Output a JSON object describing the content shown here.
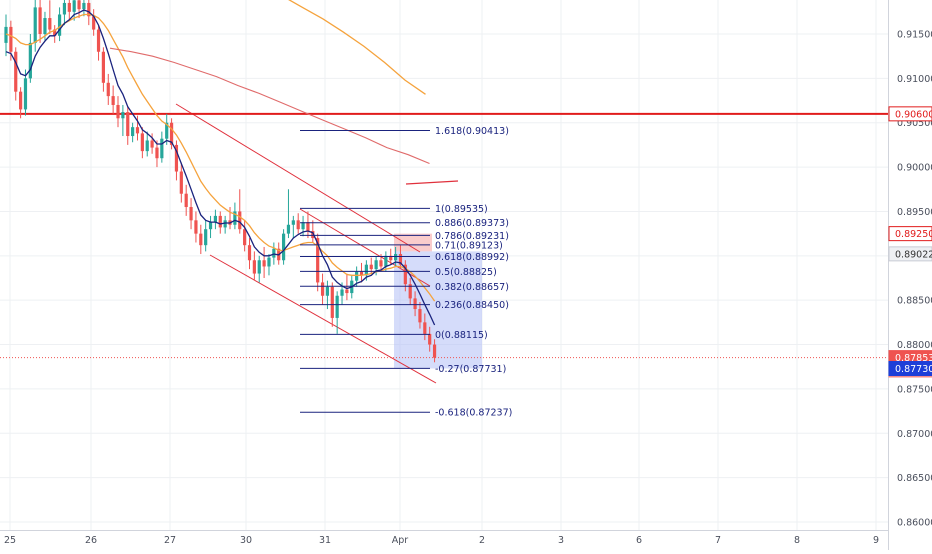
{
  "chart_data": {
    "type": "candlestick",
    "x_ticks": [
      "25",
      "26",
      "27",
      "30",
      "31",
      "Apr",
      "2",
      "3",
      "6",
      "7",
      "8",
      "9"
    ],
    "y_ticks": [
      "0.91500",
      "0.91000",
      "0.90500",
      "0.90000",
      "0.89500",
      "0.89000",
      "0.88500",
      "0.88000",
      "0.87500",
      "0.87000",
      "0.86500",
      "0.86000"
    ],
    "ylim": [
      0.8597,
      0.9196
    ],
    "price_tags": [
      {
        "text": "0.90600",
        "value": 0.906,
        "style": "red-outline"
      },
      {
        "text": "0.89250",
        "value": 0.8925,
        "style": "red-outline"
      },
      {
        "text": "0.89022",
        "value": 0.89022,
        "style": "grey"
      },
      {
        "text": "0.87853",
        "value": 0.87853,
        "style": "red-fill"
      },
      {
        "text": "01:31",
        "value": 0.87713,
        "style": "red-fill-light"
      },
      {
        "text": "0.87730",
        "value": 0.8773,
        "style": "blue-fill"
      }
    ],
    "fib_levels": [
      {
        "label": "1.618(0.90413)",
        "value": 0.90413
      },
      {
        "label": "1(0.89535)",
        "value": 0.89535
      },
      {
        "label": "0.886(0.89373)",
        "value": 0.89373
      },
      {
        "label": "0.786(0.89231)",
        "value": 0.89231
      },
      {
        "label": "0.71(0.89123)",
        "value": 0.89123
      },
      {
        "label": "0.618(0.88992)",
        "value": 0.88992
      },
      {
        "label": "0.5(0.88825)",
        "value": 0.88825
      },
      {
        "label": "0.382(0.88657)",
        "value": 0.88657
      },
      {
        "label": "0.236(0.88450)",
        "value": 0.8845
      },
      {
        "label": "0(0.88115)",
        "value": 0.88115
      },
      {
        "label": "-0.27(0.87731)",
        "value": 0.87731
      },
      {
        "label": "-0.618(0.87237)",
        "value": 0.87237
      }
    ],
    "horizontal_level": 0.906,
    "current_price": 0.87853,
    "candles": [
      {
        "o": 0.914,
        "h": 0.9172,
        "l": 0.9125,
        "c": 0.9158
      },
      {
        "o": 0.9158,
        "h": 0.9165,
        "l": 0.912,
        "c": 0.913
      },
      {
        "o": 0.913,
        "h": 0.9135,
        "l": 0.9075,
        "c": 0.9085
      },
      {
        "o": 0.9085,
        "h": 0.909,
        "l": 0.9055,
        "c": 0.9065
      },
      {
        "o": 0.9065,
        "h": 0.911,
        "l": 0.9058,
        "c": 0.91
      },
      {
        "o": 0.91,
        "h": 0.915,
        "l": 0.9095,
        "c": 0.914
      },
      {
        "o": 0.914,
        "h": 0.9196,
        "l": 0.913,
        "c": 0.918
      },
      {
        "o": 0.918,
        "h": 0.9196,
        "l": 0.914,
        "c": 0.915
      },
      {
        "o": 0.915,
        "h": 0.9175,
        "l": 0.9142,
        "c": 0.9168
      },
      {
        "o": 0.9168,
        "h": 0.9188,
        "l": 0.915,
        "c": 0.9155
      },
      {
        "o": 0.9155,
        "h": 0.916,
        "l": 0.914,
        "c": 0.9148
      },
      {
        "o": 0.9148,
        "h": 0.918,
        "l": 0.9142,
        "c": 0.9172
      },
      {
        "o": 0.9172,
        "h": 0.9196,
        "l": 0.916,
        "c": 0.9185
      },
      {
        "o": 0.9185,
        "h": 0.9196,
        "l": 0.9165,
        "c": 0.9175
      },
      {
        "o": 0.9175,
        "h": 0.9192,
        "l": 0.9165,
        "c": 0.9188
      },
      {
        "o": 0.9188,
        "h": 0.9196,
        "l": 0.9168,
        "c": 0.9178
      },
      {
        "o": 0.9178,
        "h": 0.9194,
        "l": 0.917,
        "c": 0.9185
      },
      {
        "o": 0.9185,
        "h": 0.9196,
        "l": 0.916,
        "c": 0.917
      },
      {
        "o": 0.917,
        "h": 0.9178,
        "l": 0.9148,
        "c": 0.9155
      },
      {
        "o": 0.9155,
        "h": 0.916,
        "l": 0.912,
        "c": 0.913
      },
      {
        "o": 0.913,
        "h": 0.9135,
        "l": 0.9085,
        "c": 0.9095
      },
      {
        "o": 0.9095,
        "h": 0.9105,
        "l": 0.907,
        "c": 0.908
      },
      {
        "o": 0.908,
        "h": 0.9092,
        "l": 0.906,
        "c": 0.907
      },
      {
        "o": 0.907,
        "h": 0.908,
        "l": 0.9045,
        "c": 0.9055
      },
      {
        "o": 0.9055,
        "h": 0.907,
        "l": 0.9035,
        "c": 0.9062
      },
      {
        "o": 0.9062,
        "h": 0.9068,
        "l": 0.9025,
        "c": 0.9035
      },
      {
        "o": 0.9035,
        "h": 0.905,
        "l": 0.9028,
        "c": 0.9045
      },
      {
        "o": 0.9045,
        "h": 0.9058,
        "l": 0.903,
        "c": 0.9038
      },
      {
        "o": 0.9038,
        "h": 0.9045,
        "l": 0.901,
        "c": 0.9018
      },
      {
        "o": 0.9018,
        "h": 0.904,
        "l": 0.9012,
        "c": 0.903
      },
      {
        "o": 0.903,
        "h": 0.9038,
        "l": 0.9015,
        "c": 0.9022
      },
      {
        "o": 0.9022,
        "h": 0.903,
        "l": 0.9,
        "c": 0.901
      },
      {
        "o": 0.901,
        "h": 0.904,
        "l": 0.9005,
        "c": 0.9032
      },
      {
        "o": 0.9032,
        "h": 0.906,
        "l": 0.9025,
        "c": 0.905
      },
      {
        "o": 0.905,
        "h": 0.9055,
        "l": 0.902,
        "c": 0.9025
      },
      {
        "o": 0.9025,
        "h": 0.903,
        "l": 0.8985,
        "c": 0.8995
      },
      {
        "o": 0.8995,
        "h": 0.9005,
        "l": 0.896,
        "c": 0.897
      },
      {
        "o": 0.897,
        "h": 0.898,
        "l": 0.8945,
        "c": 0.8955
      },
      {
        "o": 0.8955,
        "h": 0.8965,
        "l": 0.893,
        "c": 0.894
      },
      {
        "o": 0.894,
        "h": 0.895,
        "l": 0.8915,
        "c": 0.8925
      },
      {
        "o": 0.8925,
        "h": 0.8935,
        "l": 0.8902,
        "c": 0.8912
      },
      {
        "o": 0.8912,
        "h": 0.894,
        "l": 0.8905,
        "c": 0.893
      },
      {
        "o": 0.893,
        "h": 0.8945,
        "l": 0.892,
        "c": 0.8938
      },
      {
        "o": 0.8938,
        "h": 0.8952,
        "l": 0.893,
        "c": 0.8945
      },
      {
        "o": 0.8945,
        "h": 0.895,
        "l": 0.8925,
        "c": 0.8932
      },
      {
        "o": 0.8932,
        "h": 0.8945,
        "l": 0.8925,
        "c": 0.894
      },
      {
        "o": 0.894,
        "h": 0.8955,
        "l": 0.893,
        "c": 0.8935
      },
      {
        "o": 0.8935,
        "h": 0.896,
        "l": 0.893,
        "c": 0.895
      },
      {
        "o": 0.895,
        "h": 0.8975,
        "l": 0.8925,
        "c": 0.893
      },
      {
        "o": 0.893,
        "h": 0.894,
        "l": 0.8905,
        "c": 0.8912
      },
      {
        "o": 0.8912,
        "h": 0.892,
        "l": 0.8885,
        "c": 0.8895
      },
      {
        "o": 0.8895,
        "h": 0.8905,
        "l": 0.8872,
        "c": 0.888
      },
      {
        "o": 0.888,
        "h": 0.89,
        "l": 0.887,
        "c": 0.8895
      },
      {
        "o": 0.8895,
        "h": 0.891,
        "l": 0.8875,
        "c": 0.8888
      },
      {
        "o": 0.8888,
        "h": 0.8902,
        "l": 0.8878,
        "c": 0.8898
      },
      {
        "o": 0.8898,
        "h": 0.8915,
        "l": 0.889,
        "c": 0.8908
      },
      {
        "o": 0.8908,
        "h": 0.8915,
        "l": 0.889,
        "c": 0.8895
      },
      {
        "o": 0.8895,
        "h": 0.893,
        "l": 0.889,
        "c": 0.8925
      },
      {
        "o": 0.8925,
        "h": 0.8975,
        "l": 0.892,
        "c": 0.8935
      },
      {
        "o": 0.8935,
        "h": 0.8945,
        "l": 0.892,
        "c": 0.894
      },
      {
        "o": 0.894,
        "h": 0.8948,
        "l": 0.8925,
        "c": 0.893
      },
      {
        "o": 0.893,
        "h": 0.8945,
        "l": 0.8922,
        "c": 0.8938
      },
      {
        "o": 0.8938,
        "h": 0.895,
        "l": 0.892,
        "c": 0.8928
      },
      {
        "o": 0.8928,
        "h": 0.894,
        "l": 0.8915,
        "c": 0.892
      },
      {
        "o": 0.892,
        "h": 0.8925,
        "l": 0.886,
        "c": 0.887
      },
      {
        "o": 0.887,
        "h": 0.888,
        "l": 0.8845,
        "c": 0.8855
      },
      {
        "o": 0.8855,
        "h": 0.8872,
        "l": 0.884,
        "c": 0.8865
      },
      {
        "o": 0.8865,
        "h": 0.887,
        "l": 0.882,
        "c": 0.883
      },
      {
        "o": 0.883,
        "h": 0.886,
        "l": 0.8812,
        "c": 0.8855
      },
      {
        "o": 0.8855,
        "h": 0.887,
        "l": 0.8845,
        "c": 0.8862
      },
      {
        "o": 0.8862,
        "h": 0.888,
        "l": 0.885,
        "c": 0.8858
      },
      {
        "o": 0.8858,
        "h": 0.8878,
        "l": 0.8852,
        "c": 0.8872
      },
      {
        "o": 0.8872,
        "h": 0.8888,
        "l": 0.8865,
        "c": 0.8882
      },
      {
        "o": 0.8882,
        "h": 0.8892,
        "l": 0.887,
        "c": 0.8878
      },
      {
        "o": 0.8878,
        "h": 0.8895,
        "l": 0.8872,
        "c": 0.889
      },
      {
        "o": 0.889,
        "h": 0.8898,
        "l": 0.888,
        "c": 0.8885
      },
      {
        "o": 0.8885,
        "h": 0.89,
        "l": 0.8878,
        "c": 0.8895
      },
      {
        "o": 0.8895,
        "h": 0.8902,
        "l": 0.8882,
        "c": 0.8888
      },
      {
        "o": 0.8888,
        "h": 0.8905,
        "l": 0.8882,
        "c": 0.89
      },
      {
        "o": 0.89,
        "h": 0.8908,
        "l": 0.889,
        "c": 0.8895
      },
      {
        "o": 0.8895,
        "h": 0.891,
        "l": 0.8888,
        "c": 0.8902
      },
      {
        "o": 0.8902,
        "h": 0.8912,
        "l": 0.8885,
        "c": 0.889
      },
      {
        "o": 0.889,
        "h": 0.8895,
        "l": 0.886,
        "c": 0.8868
      },
      {
        "o": 0.8868,
        "h": 0.8875,
        "l": 0.8845,
        "c": 0.8852
      },
      {
        "o": 0.8852,
        "h": 0.886,
        "l": 0.8832,
        "c": 0.884
      },
      {
        "o": 0.884,
        "h": 0.8848,
        "l": 0.8818,
        "c": 0.8825
      },
      {
        "o": 0.8825,
        "h": 0.8835,
        "l": 0.8805,
        "c": 0.8812
      },
      {
        "o": 0.8812,
        "h": 0.882,
        "l": 0.8792,
        "c": 0.88
      },
      {
        "o": 0.88,
        "h": 0.8806,
        "l": 0.878,
        "c": 0.87853
      }
    ]
  },
  "overlays": {
    "ma_fast": [
      0.913,
      0.9128,
      0.9118,
      0.9105,
      0.9103,
      0.911,
      0.9125,
      0.9135,
      0.9142,
      0.9148,
      0.9148,
      0.9155,
      0.9162,
      0.9166,
      0.9172,
      0.9174,
      0.9177,
      0.9175,
      0.917,
      0.916,
      0.9145,
      0.9128,
      0.911,
      0.9092,
      0.9082,
      0.9068,
      0.906,
      0.9052,
      0.9042,
      0.9038,
      0.9033,
      0.9026,
      0.9026,
      0.903,
      0.9028,
      0.9018,
      0.9004,
      0.899,
      0.8975,
      0.896,
      0.8946,
      0.894,
      0.8938,
      0.8938,
      0.8936,
      0.8937,
      0.8937,
      0.894,
      0.8938,
      0.8932,
      0.8922,
      0.891,
      0.8904,
      0.89,
      0.89,
      0.8902,
      0.8901,
      0.8906,
      0.8913,
      0.892,
      0.8924,
      0.8927,
      0.8928,
      0.8926,
      0.8914,
      0.89,
      0.889,
      0.8876,
      0.887,
      0.8866,
      0.8863,
      0.8865,
      0.8869,
      0.8871,
      0.8876,
      0.8878,
      0.8883,
      0.8884,
      0.8888,
      0.889,
      0.8893,
      0.8892,
      0.8886,
      0.8878,
      0.8868,
      0.8857,
      0.8845,
      0.8834,
      0.8822
    ],
    "ma_orange": [
      0.915,
      0.9148,
      0.9145,
      0.914,
      0.9138,
      0.9138,
      0.9141,
      0.9144,
      0.9148,
      0.9152,
      0.9154,
      0.9158,
      0.9162,
      0.9165,
      0.9168,
      0.917,
      0.9172,
      0.9172,
      0.9171,
      0.9168,
      0.9162,
      0.9154,
      0.9144,
      0.9134,
      0.9124,
      0.9112,
      0.9102,
      0.9092,
      0.9082,
      0.9074,
      0.9066,
      0.9058,
      0.9052,
      0.9048,
      0.9043,
      0.9036,
      0.9027,
      0.9017,
      0.9006,
      0.8995,
      0.8984,
      0.8976,
      0.8969,
      0.8963,
      0.8957,
      0.8953,
      0.8949,
      0.8947,
      0.8944,
      0.894,
      0.8934,
      0.8926,
      0.892,
      0.8915,
      0.8911,
      0.8909,
      0.8906,
      0.8906,
      0.8908,
      0.891,
      0.8912,
      0.8914,
      0.8915,
      0.8915,
      0.8911,
      0.8905,
      0.89,
      0.8892,
      0.8887,
      0.8883,
      0.8879,
      0.8878,
      0.8878,
      0.8878,
      0.8879,
      0.888,
      0.8882,
      0.8883,
      0.8885,
      0.8886,
      0.8888,
      0.8888,
      0.8886,
      0.8882,
      0.8877,
      0.8871,
      0.8864,
      0.8857,
      0.8849
    ],
    "ma_slow_orange": [
      0.9228,
      0.9222,
      0.9215,
      0.9205,
      0.9193,
      0.918,
      0.9167,
      0.9152,
      0.9136,
      0.9118,
      0.9098,
      0.9082
    ],
    "ma_slow_red": [
      0.9134,
      0.913,
      0.9125,
      0.9118,
      0.911,
      0.9102,
      0.9092,
      0.9083,
      0.9073,
      0.9063,
      0.9053,
      0.9043,
      0.9033,
      0.9022,
      0.9014,
      0.9004
    ]
  }
}
